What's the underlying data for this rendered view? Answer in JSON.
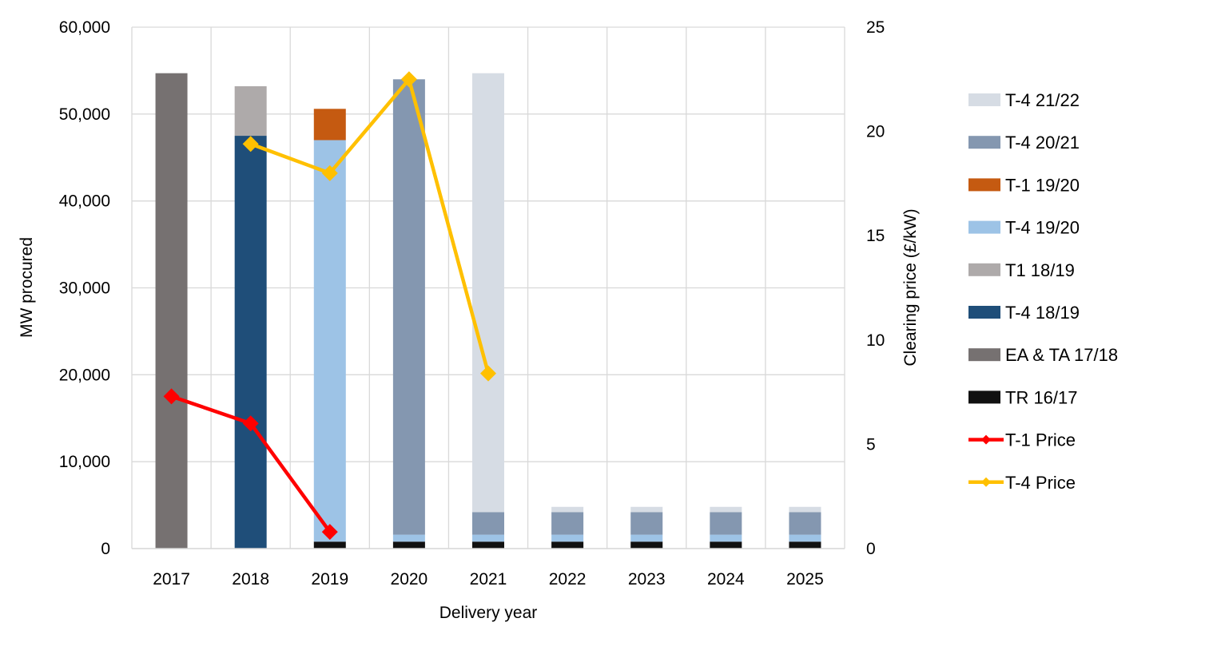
{
  "chart_data": {
    "type": "bar",
    "stacked": true,
    "secondary_type": "line",
    "categories": [
      "2017",
      "2018",
      "2019",
      "2020",
      "2021",
      "2022",
      "2023",
      "2024",
      "2025"
    ],
    "xlabel": "Delivery year",
    "ylabel": "MW procured",
    "y2label": "Clearing price (£/kW)",
    "ylim": [
      0,
      60000
    ],
    "yticks": [
      0,
      10000,
      20000,
      30000,
      40000,
      50000,
      60000
    ],
    "ytick_labels": [
      "0",
      "10,000",
      "20,000",
      "30,000",
      "40,000",
      "50,000",
      "60,000"
    ],
    "y2lim": [
      0,
      25
    ],
    "y2ticks": [
      0,
      5,
      10,
      15,
      20,
      25
    ],
    "y2tick_labels": [
      "0",
      "5",
      "10",
      "15",
      "20",
      "25"
    ],
    "grid": true,
    "legend_position": "right",
    "series": [
      {
        "name": "TR 16/17",
        "color": "#111111",
        "values": [
          0,
          0,
          800,
          800,
          800,
          800,
          800,
          800,
          800
        ]
      },
      {
        "name": "EA & TA 17/18",
        "color": "#767171",
        "values": [
          54700,
          0,
          0,
          0,
          0,
          0,
          0,
          0,
          0
        ]
      },
      {
        "name": "T-4 18/19",
        "color": "#1F4E79",
        "values": [
          0,
          47500,
          0,
          0,
          0,
          0,
          0,
          0,
          0
        ]
      },
      {
        "name": "T1 18/19",
        "color": "#AEAAAA",
        "values": [
          0,
          5700,
          0,
          0,
          0,
          0,
          0,
          0,
          0
        ]
      },
      {
        "name": "T-4 19/20",
        "color": "#9DC3E6",
        "values": [
          0,
          0,
          46200,
          800,
          800,
          800,
          800,
          800,
          800
        ]
      },
      {
        "name": "T-1 19/20",
        "color": "#C55A11",
        "values": [
          0,
          0,
          3600,
          0,
          0,
          0,
          0,
          0,
          0
        ]
      },
      {
        "name": "T-4 20/21",
        "color": "#8497B0",
        "values": [
          0,
          0,
          0,
          52400,
          2600,
          2600,
          2600,
          2600,
          2600
        ]
      },
      {
        "name": "T-4 21/22",
        "color": "#D6DCE4",
        "values": [
          0,
          0,
          0,
          0,
          50500,
          600,
          600,
          600,
          600
        ]
      }
    ],
    "line_series": [
      {
        "name": "T-1 Price",
        "color": "#FF0000",
        "axis": "secondary",
        "values": [
          7.3,
          6.0,
          0.8,
          null,
          null,
          null,
          null,
          null,
          null
        ]
      },
      {
        "name": "T-4 Price",
        "color": "#FFC000",
        "axis": "secondary",
        "values": [
          null,
          19.4,
          18.0,
          22.5,
          8.4,
          null,
          null,
          null,
          null
        ]
      }
    ],
    "legend": [
      "T-4 21/22",
      "T-4 20/21",
      "T-1 19/20",
      "T-4 19/20",
      "T1 18/19",
      "T-4 18/19",
      "EA & TA 17/18",
      "TR 16/17",
      "T-1 Price",
      "T-4 Price"
    ]
  }
}
